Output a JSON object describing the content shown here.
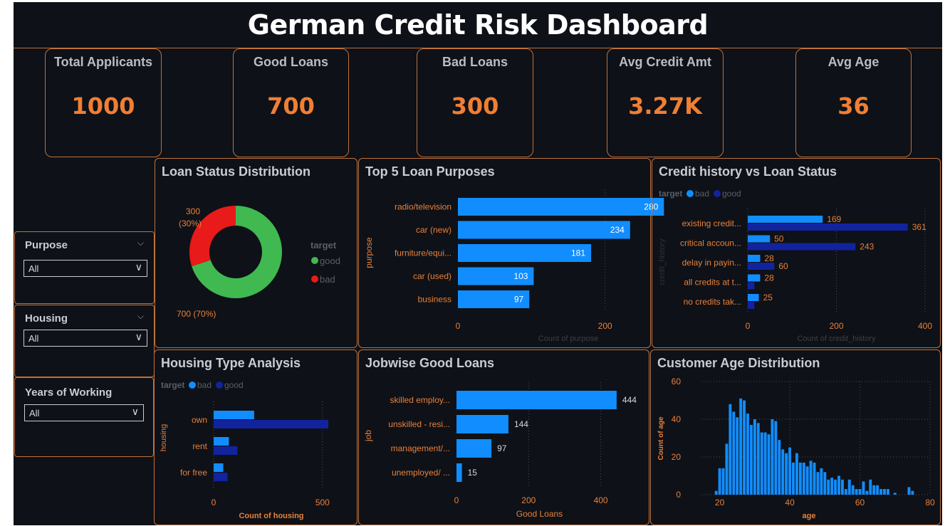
{
  "header": {
    "title": "German Credit Risk Dashboard"
  },
  "kpis": [
    {
      "label": "Total Applicants",
      "value": "1000"
    },
    {
      "label": "Good Loans",
      "value": "700"
    },
    {
      "label": "Bad Loans",
      "value": "300"
    },
    {
      "label": "Avg Credit Amt",
      "value": "3.27K"
    },
    {
      "label": "Avg Age",
      "value": "36"
    }
  ],
  "slicers": [
    {
      "title": "Purpose",
      "value": "All"
    },
    {
      "title": "Housing",
      "value": "All"
    },
    {
      "title": "Years of Working",
      "value": "All"
    }
  ],
  "colors": {
    "accent": "#f07f33",
    "bad": "#118dff",
    "good": "#12239e",
    "donut_good": "#3fb950",
    "donut_bad": "#e81a1a",
    "border": "#c0713b"
  },
  "panels": {
    "loan_status": "Loan Status Distribution",
    "purposes": "Top 5 Loan Purposes",
    "credit_history": "Credit history vs Loan Status",
    "housing": "Housing Type Analysis",
    "jobwise": "Jobwise Good Loans",
    "age": "Customer Age Distribution"
  },
  "chart_data": [
    {
      "type": "pie",
      "title": "Loan Status Distribution",
      "legend_title": "target",
      "slices": [
        {
          "name": "good",
          "value": 700,
          "label": "700 (70%)"
        },
        {
          "name": "bad",
          "value": 300,
          "label": "300 (30%)"
        }
      ]
    },
    {
      "type": "bar",
      "title": "Top 5 Loan Purposes",
      "categories": [
        "radio/television",
        "car (new)",
        "furniture/equi...",
        "car (used)",
        "business"
      ],
      "values": [
        280,
        234,
        181,
        103,
        97
      ],
      "xlabel": "Count of purpose",
      "ylabel": "purpose",
      "xticks": [
        0,
        200
      ],
      "xlim": [
        0,
        300
      ]
    },
    {
      "type": "bar",
      "title": "Credit history vs Loan Status",
      "legend_title": "target",
      "categories": [
        "existing credit...",
        "critical accoun...",
        "delay in payin...",
        "all credits at t...",
        "no credits tak..."
      ],
      "series": [
        {
          "name": "bad",
          "values": [
            169,
            50,
            28,
            28,
            25
          ]
        },
        {
          "name": "good",
          "values": [
            361,
            243,
            60,
            15,
            15
          ]
        }
      ],
      "xlabel": "Count of credit_history",
      "ylabel": "credit_history",
      "xticks": [
        0,
        200,
        400
      ],
      "xlim": [
        0,
        400
      ]
    },
    {
      "type": "bar",
      "title": "Housing Type Analysis",
      "legend_title": "target",
      "categories": [
        "own",
        "rent",
        "for free"
      ],
      "series": [
        {
          "name": "bad",
          "values": [
            186,
            70,
            44
          ]
        },
        {
          "name": "good",
          "values": [
            527,
            109,
            64
          ]
        }
      ],
      "xlabel": "Count of housing",
      "ylabel": "housing",
      "xticks": [
        0,
        500
      ],
      "xlim": [
        0,
        530
      ]
    },
    {
      "type": "bar",
      "title": "Jobwise Good Loans",
      "categories": [
        "skilled employ...",
        "unskilled - resi...",
        "management/...",
        "unemployed/ ..."
      ],
      "values": [
        444,
        144,
        97,
        15
      ],
      "xlabel": "Good Loans",
      "ylabel": "job",
      "xticks": [
        0,
        200,
        400
      ],
      "xlim": [
        0,
        460
      ]
    },
    {
      "type": "bar",
      "title": "Customer Age Distribution",
      "xlabel": "age",
      "ylabel": "Count of age",
      "xticks": [
        20,
        40,
        60,
        80
      ],
      "yticks": [
        0,
        20,
        40,
        60
      ],
      "xlim": [
        15,
        80
      ],
      "ylim": [
        0,
        60
      ],
      "x": [
        19,
        20,
        21,
        22,
        23,
        24,
        25,
        26,
        27,
        28,
        29,
        30,
        31,
        32,
        33,
        34,
        35,
        36,
        37,
        38,
        39,
        40,
        41,
        42,
        43,
        44,
        45,
        46,
        47,
        48,
        49,
        50,
        51,
        52,
        53,
        54,
        55,
        56,
        57,
        58,
        59,
        60,
        61,
        62,
        63,
        64,
        65,
        66,
        67,
        68,
        70,
        74,
        75
      ],
      "values": [
        2,
        14,
        14,
        27,
        48,
        44,
        41,
        51,
        50,
        43,
        37,
        40,
        38,
        33,
        33,
        32,
        40,
        39,
        29,
        24,
        22,
        25,
        17,
        22,
        17,
        17,
        15,
        18,
        17,
        12,
        14,
        12,
        8,
        9,
        8,
        10,
        8,
        3,
        8,
        5,
        3,
        3,
        7,
        2,
        8,
        5,
        5,
        3,
        3,
        3,
        1,
        4,
        2
      ]
    }
  ]
}
